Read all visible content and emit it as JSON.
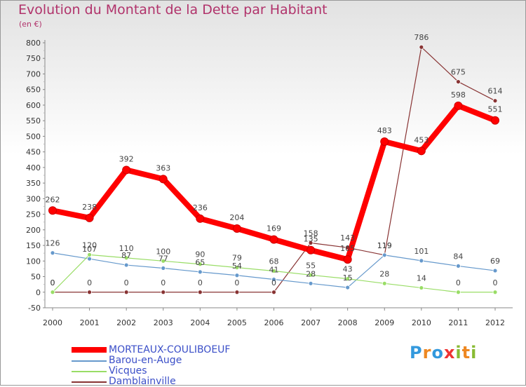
{
  "header": {
    "title": "Evolution du Montant de la Dette par Habitant",
    "unit": "(en €)"
  },
  "chart_data": {
    "type": "line",
    "title": "Evolution du Montant de la Dette par Habitant",
    "ylabel": "(en €)",
    "xlabel": "",
    "categories": [
      "2000",
      "2001",
      "2002",
      "2003",
      "2004",
      "2005",
      "2006",
      "2007",
      "2008",
      "2009",
      "2010",
      "2011",
      "2012"
    ],
    "ylim": [
      -50,
      800
    ],
    "yticks": [
      -50,
      0,
      50,
      100,
      150,
      200,
      250,
      300,
      350,
      400,
      450,
      500,
      550,
      600,
      650,
      700,
      750,
      800
    ],
    "grid": false,
    "series": [
      {
        "name": "MORTEAUX-COULIBOEUF",
        "color": "#ff0000",
        "values": [
          262,
          238,
          392,
          363,
          236,
          204,
          169,
          135,
          105,
          483,
          453,
          598,
          551
        ]
      },
      {
        "name": "Barou-en-Auge",
        "color": "#6699cc",
        "values": [
          126,
          107,
          87,
          77,
          65,
          54,
          41,
          28,
          15,
          119,
          101,
          84,
          69
        ]
      },
      {
        "name": "Vicques",
        "color": "#99dd66",
        "values": [
          0,
          120,
          110,
          100,
          90,
          79,
          68,
          55,
          43,
          28,
          14,
          0,
          0
        ]
      },
      {
        "name": "Damblainville",
        "color": "#883333",
        "values": [
          0,
          0,
          0,
          0,
          0,
          0,
          0,
          158,
          143,
          119,
          786,
          675,
          614
        ]
      }
    ],
    "legend_position": "bottom-left"
  },
  "logo": {
    "letters": [
      "P",
      "r",
      "o",
      "x",
      "i",
      "t",
      "i"
    ],
    "colors": [
      "#3399dd",
      "#ee8822",
      "#3399dd",
      "#ee3333",
      "#88bb33",
      "#ee8822",
      "#88bb33"
    ]
  }
}
